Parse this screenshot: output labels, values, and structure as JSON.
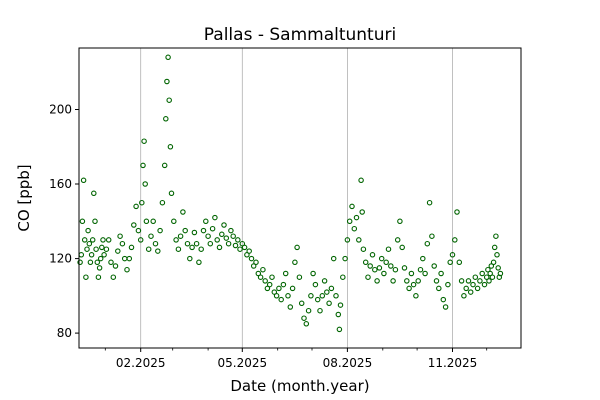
{
  "chart_data": {
    "type": "scatter",
    "title": "Pallas - Sammaltunturi",
    "xlabel": "Date (month.year)",
    "ylabel": "CO [ppb]",
    "xlim": [
      "2024-12-09",
      "2025-12-31"
    ],
    "ylim": [
      72,
      233
    ],
    "x_major_ticks": [
      "2025-02-01",
      "2025-05-01",
      "2025-08-01",
      "2025-11-01"
    ],
    "x_major_tick_labels": [
      "02.2025",
      "05.2025",
      "08.2025",
      "11.2025"
    ],
    "x_minor_ticks": [
      "2025-01-01",
      "2025-03-01",
      "2025-04-01",
      "2025-06-01",
      "2025-07-01",
      "2025-09-01",
      "2025-10-01",
      "2025-12-01"
    ],
    "y_ticks": [
      80,
      120,
      160,
      200
    ],
    "y_tick_labels": [
      "80",
      "120",
      "160",
      "200"
    ],
    "grid": "vertical lines at major x ticks",
    "marker": "hollow circle",
    "series": [
      {
        "color": "#006400",
        "points": [
          [
            "2024-12-10",
            118
          ],
          [
            "2024-12-11",
            122
          ],
          [
            "2024-12-12",
            140
          ],
          [
            "2024-12-13",
            162
          ],
          [
            "2024-12-14",
            130
          ],
          [
            "2024-12-15",
            110
          ],
          [
            "2024-12-16",
            125
          ],
          [
            "2024-12-17",
            135
          ],
          [
            "2024-12-18",
            128
          ],
          [
            "2024-12-19",
            118
          ],
          [
            "2024-12-20",
            122
          ],
          [
            "2024-12-21",
            130
          ],
          [
            "2024-12-22",
            155
          ],
          [
            "2024-12-23",
            140
          ],
          [
            "2024-12-24",
            125
          ],
          [
            "2024-12-25",
            118
          ],
          [
            "2024-12-26",
            110
          ],
          [
            "2024-12-27",
            115
          ],
          [
            "2024-12-28",
            120
          ],
          [
            "2024-12-29",
            126
          ],
          [
            "2024-12-30",
            130
          ],
          [
            "2024-12-31",
            122
          ],
          [
            "2025-01-02",
            125
          ],
          [
            "2025-01-04",
            130
          ],
          [
            "2025-01-06",
            118
          ],
          [
            "2025-01-08",
            110
          ],
          [
            "2025-01-10",
            116
          ],
          [
            "2025-01-12",
            124
          ],
          [
            "2025-01-14",
            132
          ],
          [
            "2025-01-16",
            128
          ],
          [
            "2025-01-18",
            120
          ],
          [
            "2025-01-20",
            114
          ],
          [
            "2025-01-22",
            120
          ],
          [
            "2025-01-24",
            126
          ],
          [
            "2025-01-26",
            138
          ],
          [
            "2025-01-28",
            148
          ],
          [
            "2025-01-30",
            135
          ],
          [
            "2025-02-01",
            130
          ],
          [
            "2025-02-02",
            150
          ],
          [
            "2025-02-03",
            170
          ],
          [
            "2025-02-04",
            183
          ],
          [
            "2025-02-05",
            160
          ],
          [
            "2025-02-06",
            140
          ],
          [
            "2025-02-08",
            125
          ],
          [
            "2025-02-10",
            132
          ],
          [
            "2025-02-12",
            140
          ],
          [
            "2025-02-14",
            128
          ],
          [
            "2025-02-16",
            124
          ],
          [
            "2025-02-18",
            135
          ],
          [
            "2025-02-20",
            150
          ],
          [
            "2025-02-22",
            170
          ],
          [
            "2025-02-23",
            195
          ],
          [
            "2025-02-24",
            215
          ],
          [
            "2025-02-25",
            228
          ],
          [
            "2025-02-26",
            205
          ],
          [
            "2025-02-27",
            180
          ],
          [
            "2025-02-28",
            155
          ],
          [
            "2025-03-02",
            140
          ],
          [
            "2025-03-04",
            130
          ],
          [
            "2025-03-06",
            125
          ],
          [
            "2025-03-08",
            132
          ],
          [
            "2025-03-10",
            145
          ],
          [
            "2025-03-12",
            135
          ],
          [
            "2025-03-14",
            128
          ],
          [
            "2025-03-16",
            120
          ],
          [
            "2025-03-18",
            126
          ],
          [
            "2025-03-20",
            134
          ],
          [
            "2025-03-22",
            128
          ],
          [
            "2025-03-24",
            118
          ],
          [
            "2025-03-26",
            125
          ],
          [
            "2025-03-28",
            135
          ],
          [
            "2025-03-30",
            140
          ],
          [
            "2025-04-01",
            132
          ],
          [
            "2025-04-03",
            128
          ],
          [
            "2025-04-05",
            136
          ],
          [
            "2025-04-07",
            142
          ],
          [
            "2025-04-09",
            130
          ],
          [
            "2025-04-11",
            126
          ],
          [
            "2025-04-13",
            133
          ],
          [
            "2025-04-15",
            138
          ],
          [
            "2025-04-17",
            131
          ],
          [
            "2025-04-19",
            128
          ],
          [
            "2025-04-21",
            135
          ],
          [
            "2025-04-23",
            132
          ],
          [
            "2025-04-25",
            127
          ],
          [
            "2025-04-27",
            130
          ],
          [
            "2025-04-29",
            125
          ],
          [
            "2025-05-01",
            128
          ],
          [
            "2025-05-03",
            126
          ],
          [
            "2025-05-05",
            122
          ],
          [
            "2025-05-07",
            124
          ],
          [
            "2025-05-09",
            120
          ],
          [
            "2025-05-11",
            116
          ],
          [
            "2025-05-13",
            118
          ],
          [
            "2025-05-15",
            112
          ],
          [
            "2025-05-17",
            110
          ],
          [
            "2025-05-19",
            114
          ],
          [
            "2025-05-21",
            108
          ],
          [
            "2025-05-23",
            104
          ],
          [
            "2025-05-25",
            106
          ],
          [
            "2025-05-27",
            110
          ],
          [
            "2025-05-29",
            102
          ],
          [
            "2025-05-31",
            100
          ],
          [
            "2025-06-02",
            104
          ],
          [
            "2025-06-04",
            98
          ],
          [
            "2025-06-06",
            106
          ],
          [
            "2025-06-08",
            112
          ],
          [
            "2025-06-10",
            100
          ],
          [
            "2025-06-12",
            94
          ],
          [
            "2025-06-14",
            104
          ],
          [
            "2025-06-16",
            118
          ],
          [
            "2025-06-18",
            126
          ],
          [
            "2025-06-20",
            110
          ],
          [
            "2025-06-22",
            96
          ],
          [
            "2025-06-24",
            88
          ],
          [
            "2025-06-26",
            85
          ],
          [
            "2025-06-28",
            92
          ],
          [
            "2025-06-30",
            100
          ],
          [
            "2025-07-02",
            112
          ],
          [
            "2025-07-04",
            106
          ],
          [
            "2025-07-06",
            98
          ],
          [
            "2025-07-08",
            92
          ],
          [
            "2025-07-10",
            100
          ],
          [
            "2025-07-12",
            108
          ],
          [
            "2025-07-14",
            102
          ],
          [
            "2025-07-16",
            96
          ],
          [
            "2025-07-18",
            104
          ],
          [
            "2025-07-20",
            120
          ],
          [
            "2025-07-22",
            100
          ],
          [
            "2025-07-24",
            90
          ],
          [
            "2025-07-25",
            82
          ],
          [
            "2025-07-26",
            95
          ],
          [
            "2025-07-28",
            110
          ],
          [
            "2025-07-30",
            120
          ],
          [
            "2025-08-01",
            130
          ],
          [
            "2025-08-03",
            140
          ],
          [
            "2025-08-05",
            148
          ],
          [
            "2025-08-07",
            136
          ],
          [
            "2025-08-09",
            142
          ],
          [
            "2025-08-11",
            130
          ],
          [
            "2025-08-13",
            162
          ],
          [
            "2025-08-14",
            145
          ],
          [
            "2025-08-15",
            125
          ],
          [
            "2025-08-17",
            118
          ],
          [
            "2025-08-19",
            110
          ],
          [
            "2025-08-21",
            116
          ],
          [
            "2025-08-23",
            122
          ],
          [
            "2025-08-25",
            114
          ],
          [
            "2025-08-27",
            108
          ],
          [
            "2025-08-29",
            115
          ],
          [
            "2025-08-31",
            120
          ],
          [
            "2025-09-02",
            112
          ],
          [
            "2025-09-04",
            118
          ],
          [
            "2025-09-06",
            125
          ],
          [
            "2025-09-08",
            116
          ],
          [
            "2025-09-10",
            108
          ],
          [
            "2025-09-12",
            114
          ],
          [
            "2025-09-14",
            130
          ],
          [
            "2025-09-16",
            140
          ],
          [
            "2025-09-18",
            126
          ],
          [
            "2025-09-20",
            115
          ],
          [
            "2025-09-22",
            108
          ],
          [
            "2025-09-24",
            104
          ],
          [
            "2025-09-26",
            112
          ],
          [
            "2025-09-28",
            106
          ],
          [
            "2025-09-30",
            100
          ],
          [
            "2025-10-02",
            108
          ],
          [
            "2025-10-04",
            114
          ],
          [
            "2025-10-06",
            120
          ],
          [
            "2025-10-08",
            112
          ],
          [
            "2025-10-10",
            128
          ],
          [
            "2025-10-12",
            150
          ],
          [
            "2025-10-14",
            132
          ],
          [
            "2025-10-16",
            116
          ],
          [
            "2025-10-18",
            108
          ],
          [
            "2025-10-20",
            104
          ],
          [
            "2025-10-22",
            112
          ],
          [
            "2025-10-24",
            98
          ],
          [
            "2025-10-26",
            94
          ],
          [
            "2025-10-28",
            106
          ],
          [
            "2025-10-30",
            118
          ],
          [
            "2025-11-01",
            122
          ],
          [
            "2025-11-03",
            130
          ],
          [
            "2025-11-05",
            145
          ],
          [
            "2025-11-07",
            118
          ],
          [
            "2025-11-09",
            108
          ],
          [
            "2025-11-11",
            100
          ],
          [
            "2025-11-13",
            104
          ],
          [
            "2025-11-15",
            108
          ],
          [
            "2025-11-17",
            102
          ],
          [
            "2025-11-19",
            106
          ],
          [
            "2025-11-21",
            110
          ],
          [
            "2025-11-23",
            104
          ],
          [
            "2025-11-25",
            108
          ],
          [
            "2025-11-27",
            112
          ],
          [
            "2025-11-29",
            106
          ],
          [
            "2025-12-01",
            110
          ],
          [
            "2025-12-02",
            114
          ],
          [
            "2025-12-03",
            108
          ],
          [
            "2025-12-04",
            112
          ],
          [
            "2025-12-05",
            116
          ],
          [
            "2025-12-06",
            110
          ],
          [
            "2025-12-07",
            118
          ],
          [
            "2025-12-08",
            126
          ],
          [
            "2025-12-09",
            132
          ],
          [
            "2025-12-10",
            122
          ],
          [
            "2025-12-11",
            115
          ],
          [
            "2025-12-12",
            110
          ],
          [
            "2025-12-13",
            112
          ]
        ]
      }
    ]
  }
}
